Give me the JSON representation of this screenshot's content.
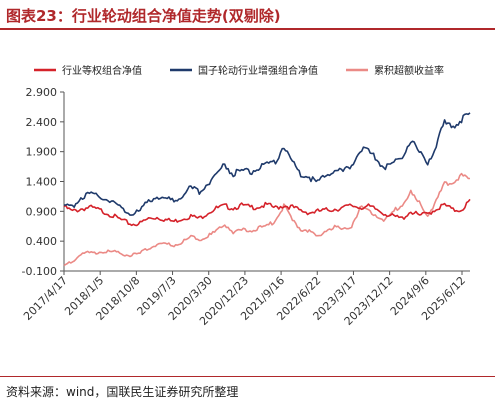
{
  "figure": {
    "title": "图表23：行业轮动组合净值走势(双剔除)",
    "source": "资料来源：wind，国联民生证券研究所整理"
  },
  "chart_data": {
    "type": "line",
    "x_labels": [
      "2017/4/17",
      "2018/1/5",
      "2018/10/8",
      "2019/7/3",
      "2020/3/30",
      "2020/12/23",
      "2021/9/16",
      "2022/6/22",
      "2023/3/17",
      "2023/12/12",
      "2024/9/6",
      "2025/6/12"
    ],
    "ylim": [
      -0.1,
      2.9
    ],
    "y_ticks": [
      "-0.100",
      "0.400",
      "0.900",
      "1.400",
      "1.900",
      "2.400",
      "2.900"
    ],
    "legend_position": "top",
    "grid": false,
    "series": [
      {
        "name": "行业等权组合净值",
        "color": "#d5222a",
        "values": [
          1.0,
          0.92,
          0.96,
          0.99,
          0.95,
          0.9,
          0.83,
          0.76,
          0.7,
          0.72,
          0.8,
          0.82,
          0.78,
          0.75,
          0.8,
          0.84,
          0.8,
          0.9,
          0.97,
          1.01,
          0.98,
          1.02,
          0.99,
          1.0,
          1.03,
          0.98,
          1.02,
          0.99,
          0.93,
          0.9,
          0.92,
          0.94,
          0.96,
          0.98,
          1.02,
          0.99,
          1.0,
          0.95,
          0.88,
          0.83,
          0.8,
          0.92,
          0.85,
          0.88,
          0.96,
          1.03,
          0.94,
          0.95,
          1.1
        ]
      },
      {
        "name": "国子轮动行业增强组合净值",
        "color": "#1f3a6b",
        "values": [
          1.0,
          1.0,
          1.16,
          1.21,
          1.18,
          1.14,
          1.06,
          0.95,
          0.88,
          0.93,
          1.1,
          1.18,
          1.14,
          1.1,
          1.2,
          1.32,
          1.25,
          1.4,
          1.55,
          1.72,
          1.55,
          1.62,
          1.58,
          1.65,
          1.7,
          1.75,
          2.04,
          1.75,
          1.55,
          1.5,
          1.4,
          1.55,
          1.62,
          1.58,
          1.7,
          1.98,
          1.92,
          1.8,
          1.65,
          1.75,
          1.85,
          2.15,
          1.9,
          1.75,
          2.05,
          2.4,
          2.38,
          2.48,
          2.55
        ]
      },
      {
        "name": "累积超额收益率",
        "color": "#eb8a86",
        "values": [
          0.0,
          0.08,
          0.2,
          0.22,
          0.23,
          0.24,
          0.23,
          0.19,
          0.18,
          0.21,
          0.3,
          0.36,
          0.36,
          0.35,
          0.4,
          0.48,
          0.45,
          0.5,
          0.58,
          0.71,
          0.57,
          0.6,
          0.59,
          0.65,
          0.67,
          0.77,
          1.02,
          0.76,
          0.62,
          0.6,
          0.48,
          0.61,
          0.66,
          0.6,
          0.68,
          0.99,
          0.92,
          0.85,
          0.77,
          0.92,
          1.05,
          1.23,
          1.05,
          0.87,
          1.09,
          1.37,
          1.44,
          1.53,
          1.45
        ]
      }
    ]
  }
}
